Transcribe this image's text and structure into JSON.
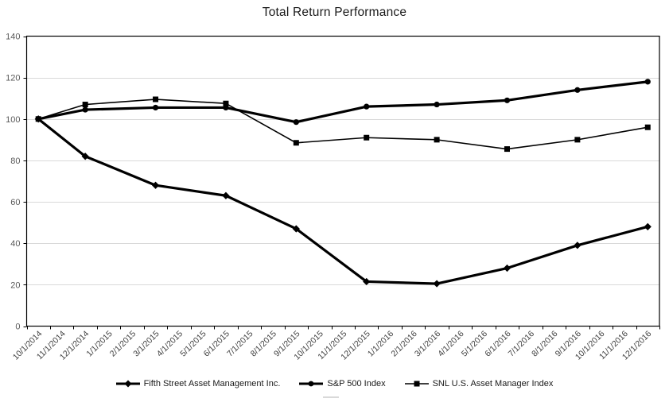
{
  "chart_data": {
    "type": "line",
    "title": "Total Return Performance",
    "x_categories": [
      "10/1/2014",
      "11/1/2014",
      "12/1/2014",
      "1/1/2015",
      "2/1/2015",
      "3/1/2015",
      "4/1/2015",
      "5/1/2015",
      "6/1/2015",
      "7/1/2015",
      "8/1/2015",
      "9/1/2015",
      "10/1/2015",
      "11/1/2015",
      "12/1/2015",
      "1/1/2016",
      "2/1/2016",
      "3/1/2016",
      "4/1/2016",
      "5/1/2016",
      "6/1/2016",
      "7/1/2016",
      "8/1/2016",
      "9/1/2016",
      "10/1/2016",
      "11/1/2016",
      "12/1/2016"
    ],
    "point_categories": [
      "10/1/2014",
      "12/1/2014",
      "3/1/2015",
      "6/1/2015",
      "9/1/2015",
      "12/1/2015",
      "3/1/2016",
      "6/1/2016",
      "9/1/2016",
      "12/1/2016"
    ],
    "series": [
      {
        "name": "Fifth Street Asset Management Inc.",
        "marker": "diamond",
        "line": "thick",
        "values": [
          100,
          82,
          68,
          63,
          47,
          21.5,
          20.5,
          28,
          39,
          48
        ]
      },
      {
        "name": "S&P 500 Index",
        "marker": "circle",
        "line": "thick",
        "values": [
          100,
          104.5,
          105.5,
          105.5,
          98.5,
          106,
          107,
          109,
          114,
          118
        ]
      },
      {
        "name": "SNL U.S. Asset Manager Index",
        "marker": "square",
        "line": "thin",
        "values": [
          100,
          107,
          109.5,
          107.5,
          88.5,
          91,
          90,
          85.5,
          90,
          96
        ]
      }
    ],
    "y_ticks": [
      0,
      20,
      40,
      60,
      80,
      100,
      120,
      140
    ],
    "ylim": [
      0,
      140
    ],
    "grid": "horizontal",
    "legend_position": "bottom",
    "colors": {
      "series": "#000000",
      "grid": "#d9d9d9",
      "axis": "#000000",
      "y_tick_label": "#595959",
      "x_tick_label": "#404040",
      "title": "#1a1a1a",
      "legend_text": "#1a1a1a"
    }
  }
}
